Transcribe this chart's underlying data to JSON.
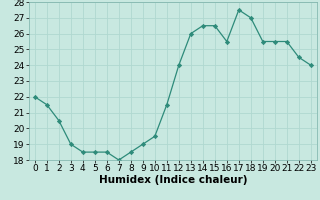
{
  "x": [
    0,
    1,
    2,
    3,
    4,
    5,
    6,
    7,
    8,
    9,
    10,
    11,
    12,
    13,
    14,
    15,
    16,
    17,
    18,
    19,
    20,
    21,
    22,
    23
  ],
  "y": [
    22,
    21.5,
    20.5,
    19.0,
    18.5,
    18.5,
    18.5,
    18.0,
    18.5,
    19.0,
    19.5,
    21.5,
    24.0,
    26.0,
    26.5,
    26.5,
    25.5,
    27.5,
    27.0,
    25.5,
    25.5,
    25.5,
    24.5,
    24.0
  ],
  "line_color": "#2e8b7a",
  "marker_color": "#2e8b7a",
  "bg_color": "#c8e8e0",
  "grid_color": "#b0d8d0",
  "xlabel": "Humidex (Indice chaleur)",
  "xlim": [
    -0.5,
    23.5
  ],
  "ylim": [
    18,
    28
  ],
  "xticks": [
    0,
    1,
    2,
    3,
    4,
    5,
    6,
    7,
    8,
    9,
    10,
    11,
    12,
    13,
    14,
    15,
    16,
    17,
    18,
    19,
    20,
    21,
    22,
    23
  ],
  "yticks": [
    18,
    19,
    20,
    21,
    22,
    23,
    24,
    25,
    26,
    27,
    28
  ],
  "xlabel_fontsize": 7.5,
  "tick_fontsize": 6.5
}
